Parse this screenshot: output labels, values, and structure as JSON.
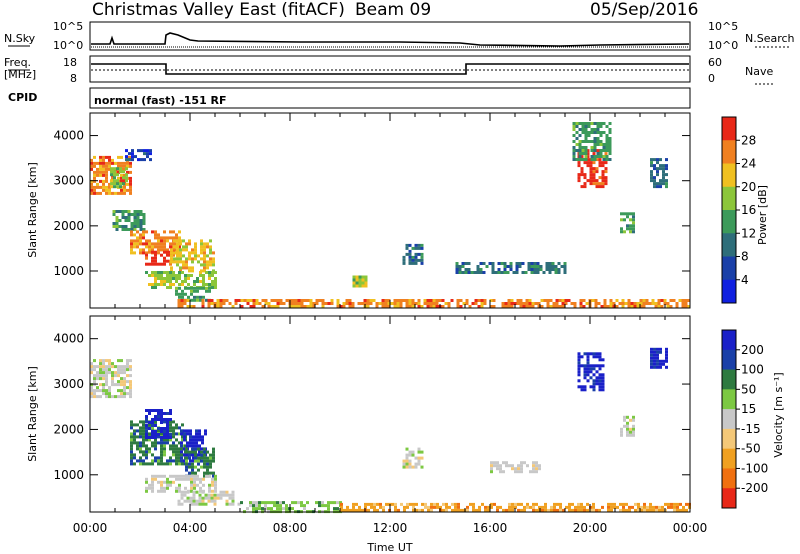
{
  "header": {
    "title": "Christmas Valley East (fitACF)",
    "beam": "Beam 09",
    "date": "05/Sep/2016"
  },
  "top_panel": {
    "left_label": "N.Sky",
    "left_ticks": [
      "10^5",
      "10^0"
    ],
    "right_label": "N.Search",
    "right_ticks": [
      "10^5",
      "10^0"
    ]
  },
  "freq_panel": {
    "left_label_1": "Freq.",
    "left_label_2": "[MHz]",
    "left_ticks": [
      "18",
      "8"
    ],
    "right_label": "Nave",
    "right_ticks": [
      "60",
      "0"
    ],
    "cpid_label": "CPID",
    "mode_text": "normal (fast)  -151 RF"
  },
  "colors": {
    "power_scale": [
      "#1020e0",
      "#1a40a8",
      "#2e6e7a",
      "#3c9a5a",
      "#8cc63a",
      "#f0c020",
      "#f08020",
      "#e82818"
    ],
    "velocity_scale": [
      "#1a20c8",
      "#1a40a8",
      "#2e7a40",
      "#7cc842",
      "#c8c8c8",
      "#f4c878",
      "#f0a020",
      "#f07010",
      "#e82818"
    ]
  },
  "chart_data": [
    {
      "type": "heatmap",
      "name": "power",
      "ylabel": "Slant Range [km]",
      "xlabel": "",
      "xlim": [
        0,
        24
      ],
      "ylim": [
        180,
        4500
      ],
      "y_ticks": [
        "1000",
        "2000",
        "3000",
        "4000"
      ],
      "colorbar_label": "Power [dB]",
      "colorbar_ticks": [
        "4",
        "8",
        "12",
        "16",
        "20",
        "24",
        "28"
      ],
      "patches": [
        {
          "x0": 0.0,
          "x1": 1.6,
          "y0": 2750,
          "y1": 3550,
          "level": 6
        },
        {
          "x0": 0.8,
          "x1": 1.5,
          "y0": 2900,
          "y1": 3300,
          "level": 4
        },
        {
          "x0": 1.4,
          "x1": 2.4,
          "y0": 3450,
          "y1": 3700,
          "level": 1
        },
        {
          "x0": 0.9,
          "x1": 2.2,
          "y0": 1950,
          "y1": 2350,
          "level": 3
        },
        {
          "x0": 1.6,
          "x1": 3.6,
          "y0": 1400,
          "y1": 1900,
          "level": 6
        },
        {
          "x0": 2.2,
          "x1": 3.4,
          "y0": 1150,
          "y1": 1450,
          "level": 7
        },
        {
          "x0": 3.2,
          "x1": 5.0,
          "y0": 1000,
          "y1": 1700,
          "level": 5
        },
        {
          "x0": 2.2,
          "x1": 5.0,
          "y0": 650,
          "y1": 1000,
          "level": 4
        },
        {
          "x0": 3.4,
          "x1": 4.8,
          "y0": 350,
          "y1": 650,
          "level": 3
        },
        {
          "x0": 3.5,
          "x1": 24.0,
          "y0": 200,
          "y1": 380,
          "level": 6
        },
        {
          "x0": 10.5,
          "x1": 11.0,
          "y0": 700,
          "y1": 900,
          "level": 4
        },
        {
          "x0": 12.5,
          "x1": 13.3,
          "y0": 1200,
          "y1": 1600,
          "level": 2
        },
        {
          "x0": 14.5,
          "x1": 19.0,
          "y0": 1000,
          "y1": 1200,
          "level": 2
        },
        {
          "x0": 19.5,
          "x1": 20.6,
          "y0": 2900,
          "y1": 3700,
          "level": 7
        },
        {
          "x0": 19.3,
          "x1": 20.8,
          "y0": 3500,
          "y1": 4300,
          "level": 3
        },
        {
          "x0": 22.4,
          "x1": 23.1,
          "y0": 2900,
          "y1": 3500,
          "level": 2
        },
        {
          "x0": 21.2,
          "x1": 21.8,
          "y0": 1900,
          "y1": 2300,
          "level": 3
        }
      ]
    },
    {
      "type": "heatmap",
      "name": "velocity",
      "ylabel": "Slant Range [km]",
      "xlabel": "Time UT",
      "xlim": [
        0,
        24
      ],
      "ylim": [
        180,
        4500
      ],
      "y_ticks": [
        "1000",
        "2000",
        "3000",
        "4000"
      ],
      "x_ticks": [
        "00:00",
        "04:00",
        "08:00",
        "12:00",
        "16:00",
        "20:00",
        "00:00"
      ],
      "colorbar_label": "Velocity [m s⁻¹]",
      "colorbar_ticks": [
        "200",
        "100",
        "50",
        "15",
        "-15",
        "-50",
        "-100",
        "-200"
      ],
      "patches": [
        {
          "x0": 0.0,
          "x1": 1.6,
          "y0": 2750,
          "y1": 3550,
          "level": 4
        },
        {
          "x0": 1.6,
          "x1": 3.8,
          "y0": 1250,
          "y1": 2200,
          "level": 2
        },
        {
          "x0": 2.2,
          "x1": 3.2,
          "y0": 1800,
          "y1": 2450,
          "level": 0
        },
        {
          "x0": 3.6,
          "x1": 4.6,
          "y0": 1300,
          "y1": 2000,
          "level": 0
        },
        {
          "x0": 3.8,
          "x1": 5.0,
          "y0": 1000,
          "y1": 1600,
          "level": 2
        },
        {
          "x0": 2.2,
          "x1": 5.0,
          "y0": 650,
          "y1": 1000,
          "level": 4
        },
        {
          "x0": 3.5,
          "x1": 6.0,
          "y0": 350,
          "y1": 650,
          "level": 4
        },
        {
          "x0": 6.0,
          "x1": 10.0,
          "y0": 200,
          "y1": 420,
          "level": 3
        },
        {
          "x0": 10.0,
          "x1": 24.0,
          "y0": 200,
          "y1": 380,
          "level": 6
        },
        {
          "x0": 19.5,
          "x1": 20.5,
          "y0": 2900,
          "y1": 3700,
          "level": 0
        },
        {
          "x0": 22.4,
          "x1": 23.1,
          "y0": 3400,
          "y1": 3800,
          "level": 0
        },
        {
          "x0": 21.2,
          "x1": 21.8,
          "y0": 1900,
          "y1": 2300,
          "level": 4
        },
        {
          "x0": 12.5,
          "x1": 13.3,
          "y0": 1200,
          "y1": 1600,
          "level": 4
        },
        {
          "x0": 16.0,
          "x1": 18.0,
          "y0": 1100,
          "y1": 1300,
          "level": 4
        }
      ]
    }
  ]
}
